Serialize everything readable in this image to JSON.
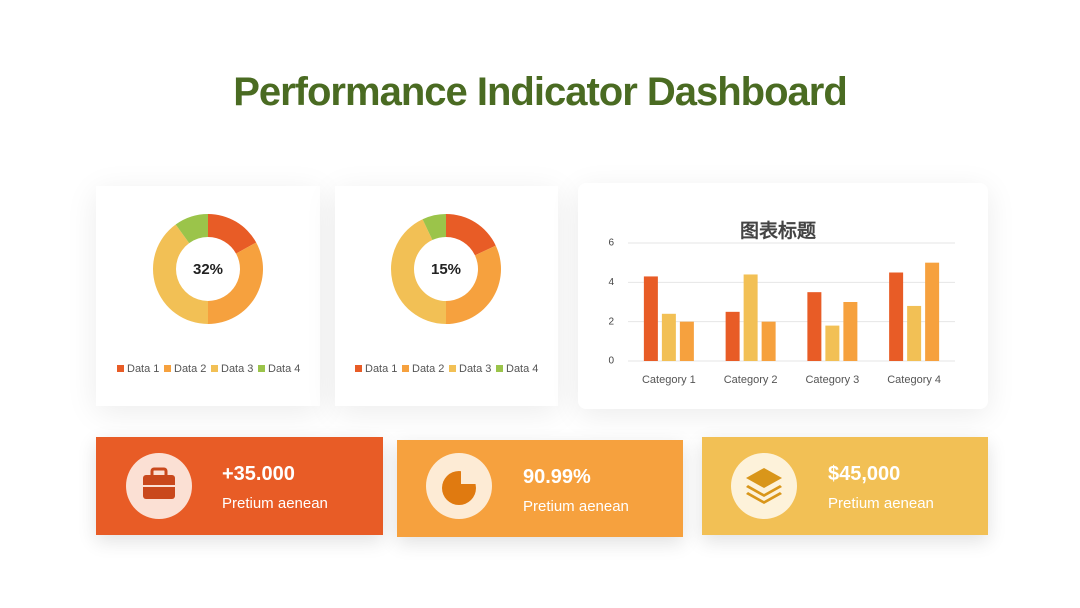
{
  "header": {
    "title": "Performance Indicator Dashboard"
  },
  "chart_data": [
    {
      "type": "donut",
      "center_label": "32%",
      "categories": [
        "Data 1",
        "Data 2",
        "Data 3",
        "Data 4"
      ],
      "values": [
        17,
        33,
        40,
        10
      ],
      "colors": [
        "#e85c26",
        "#f6a13e",
        "#f2c055",
        "#9bc44a"
      ]
    },
    {
      "type": "donut",
      "center_label": "15%",
      "categories": [
        "Data 1",
        "Data 2",
        "Data 3",
        "Data 4"
      ],
      "values": [
        18,
        32,
        43,
        7
      ],
      "colors": [
        "#e85c26",
        "#f6a13e",
        "#f2c055",
        "#9bc44a"
      ]
    },
    {
      "type": "bar",
      "title": "图表标题",
      "categories": [
        "Category 1",
        "Category 2",
        "Category 3",
        "Category 4"
      ],
      "series": [
        {
          "color": "#e85c26",
          "values": [
            4.3,
            2.5,
            3.5,
            4.5
          ]
        },
        {
          "color": "#f2c055",
          "values": [
            2.4,
            4.4,
            1.8,
            2.8
          ]
        },
        {
          "color": "#f6a13e",
          "values": [
            2.0,
            2.0,
            3.0,
            5.0
          ]
        }
      ],
      "ylim": [
        0,
        6
      ],
      "yticks": [
        0,
        2,
        4,
        6
      ],
      "grid": true
    }
  ],
  "cards": [
    {
      "value": "+35.000",
      "text": "Pretium aenean"
    },
    {
      "value": "90.99%",
      "text": "Pretium aenean"
    },
    {
      "value": "$45,000",
      "text": "Pretium aenean"
    }
  ]
}
